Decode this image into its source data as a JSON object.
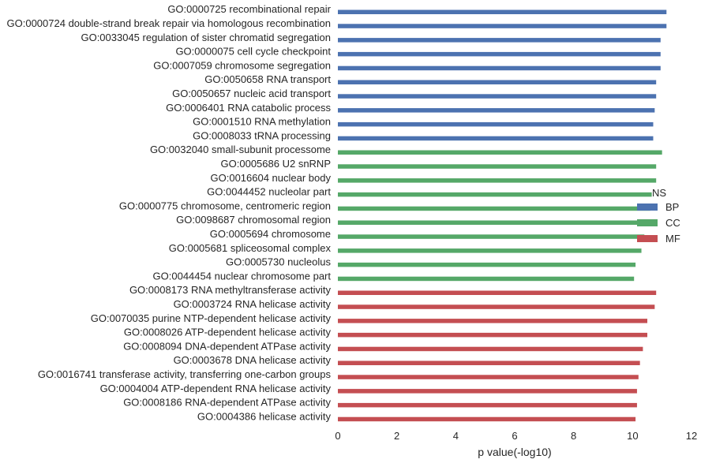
{
  "chart_data": {
    "type": "bar",
    "orientation": "horizontal",
    "xlabel": "p value(-log10)",
    "xlim": [
      0,
      12
    ],
    "xticks": [
      0,
      2,
      4,
      6,
      8,
      10,
      12
    ],
    "grid": false,
    "legend": {
      "title": "NS",
      "placement": "right",
      "entries": [
        {
          "name": "BP",
          "color": "#4C72B0"
        },
        {
          "name": "CC",
          "color": "#55A868"
        },
        {
          "name": "MF",
          "color": "#C44E52"
        }
      ]
    },
    "categories": [
      {
        "label": "GO:0000725 recombinational repair",
        "value": 11.15,
        "group": "BP"
      },
      {
        "label": "GO:0000724 double-strand break repair via homologous recombination",
        "value": 11.15,
        "group": "BP"
      },
      {
        "label": "GO:0033045 regulation of sister chromatid segregation",
        "value": 10.95,
        "group": "BP"
      },
      {
        "label": "GO:0000075 cell cycle checkpoint",
        "value": 10.95,
        "group": "BP"
      },
      {
        "label": "GO:0007059 chromosome segregation",
        "value": 10.95,
        "group": "BP"
      },
      {
        "label": "GO:0050658 RNA transport",
        "value": 10.8,
        "group": "BP"
      },
      {
        "label": "GO:0050657 nucleic acid transport",
        "value": 10.8,
        "group": "BP"
      },
      {
        "label": "GO:0006401 RNA catabolic process",
        "value": 10.75,
        "group": "BP"
      },
      {
        "label": "GO:0001510 RNA methylation",
        "value": 10.7,
        "group": "BP"
      },
      {
        "label": "GO:0008033 tRNA processing",
        "value": 10.7,
        "group": "BP"
      },
      {
        "label": "GO:0032040 small-subunit processome",
        "value": 11.0,
        "group": "CC"
      },
      {
        "label": "GO:0005686 U2 snRNP",
        "value": 10.8,
        "group": "CC"
      },
      {
        "label": "GO:0016604 nuclear body",
        "value": 10.8,
        "group": "CC"
      },
      {
        "label": "GO:0044452 nucleolar part",
        "value": 10.65,
        "group": "CC"
      },
      {
        "label": "GO:0000775 chromosome, centromeric region",
        "value": 10.6,
        "group": "CC"
      },
      {
        "label": "GO:0098687 chromosomal region",
        "value": 10.5,
        "group": "CC"
      },
      {
        "label": "GO:0005694 chromosome",
        "value": 10.4,
        "group": "CC"
      },
      {
        "label": "GO:0005681 spliceosomal complex",
        "value": 10.3,
        "group": "CC"
      },
      {
        "label": "GO:0005730 nucleolus",
        "value": 10.1,
        "group": "CC"
      },
      {
        "label": "GO:0044454 nuclear chromosome part",
        "value": 10.05,
        "group": "CC"
      },
      {
        "label": "GO:0008173 RNA methyltransferase activity",
        "value": 10.8,
        "group": "MF"
      },
      {
        "label": "GO:0003724 RNA helicase activity",
        "value": 10.75,
        "group": "MF"
      },
      {
        "label": "GO:0070035 purine NTP-dependent helicase activity",
        "value": 10.5,
        "group": "MF"
      },
      {
        "label": "GO:0008026 ATP-dependent helicase activity",
        "value": 10.5,
        "group": "MF"
      },
      {
        "label": "GO:0008094 DNA-dependent ATPase activity",
        "value": 10.35,
        "group": "MF"
      },
      {
        "label": "GO:0003678 DNA helicase activity",
        "value": 10.25,
        "group": "MF"
      },
      {
        "label": "GO:0016741 transferase activity, transferring one-carbon groups",
        "value": 10.2,
        "group": "MF"
      },
      {
        "label": "GO:0004004 ATP-dependent RNA helicase activity",
        "value": 10.15,
        "group": "MF"
      },
      {
        "label": "GO:0008186 RNA-dependent ATPase activity",
        "value": 10.15,
        "group": "MF"
      },
      {
        "label": "GO:0004386 helicase activity",
        "value": 10.1,
        "group": "MF"
      }
    ]
  }
}
